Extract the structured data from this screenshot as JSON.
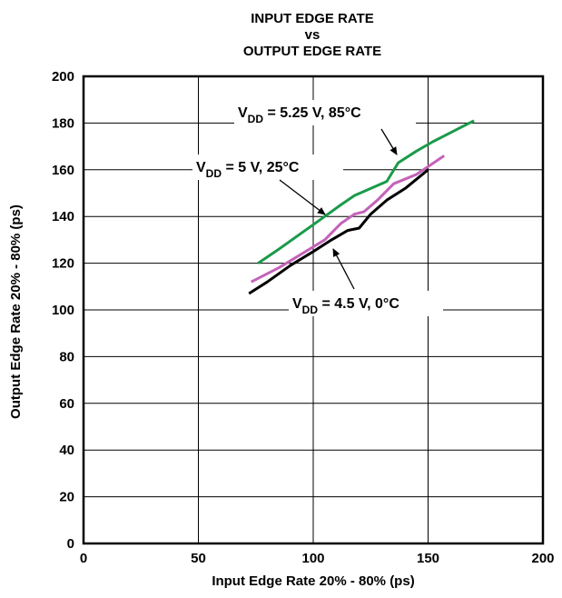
{
  "chart_data": {
    "type": "line",
    "title_lines": [
      "INPUT EDGE RATE",
      "vs",
      "OUTPUT EDGE RATE"
    ],
    "xlabel": "Input Edge Rate 20% - 80% (ps)",
    "ylabel": "Output Edge Rate 20% - 80% (ps)",
    "xlim": [
      0,
      200
    ],
    "ylim": [
      0,
      200
    ],
    "xticks": [
      "0",
      "50",
      "100",
      "150",
      "200"
    ],
    "yticks": [
      "0",
      "20",
      "40",
      "60",
      "80",
      "100",
      "120",
      "140",
      "160",
      "180",
      "200"
    ],
    "grid": true,
    "series": [
      {
        "name": "VDD = 5.25 V, 85°C",
        "color": "#1a9a4a",
        "x": [
          76,
          85,
          95,
          105,
          112,
          118,
          125,
          132,
          137,
          145,
          152,
          160,
          170
        ],
        "y": [
          120,
          126,
          133,
          140,
          145,
          149,
          152,
          155,
          163,
          168,
          172,
          176,
          181
        ]
      },
      {
        "name": "VDD = 5 V, 25°C",
        "color": "#c462b8",
        "x": [
          73,
          85,
          95,
          105,
          112,
          118,
          122,
          128,
          135,
          145,
          157
        ],
        "y": [
          112,
          118,
          124,
          130,
          137,
          141,
          142,
          147,
          154,
          158,
          166
        ]
      },
      {
        "name": "VDD = 4.5 V, 0°C",
        "color": "#000000",
        "x": [
          72,
          80,
          90,
          100,
          108,
          115,
          120,
          125,
          132,
          140,
          150
        ],
        "y": [
          107,
          112,
          119,
          125,
          130,
          134,
          135,
          141,
          147,
          152,
          160
        ]
      }
    ],
    "annotations": [
      {
        "main": "V",
        "sub": "DD",
        "rest": " = 5.25 V, 85°C",
        "series": 0
      },
      {
        "main": "V",
        "sub": "DD",
        "rest": " = 5 V, 25°C",
        "series": 1
      },
      {
        "main": "V",
        "sub": "DD",
        "rest": " = 4.5 V, 0°C",
        "series": 2
      }
    ]
  }
}
